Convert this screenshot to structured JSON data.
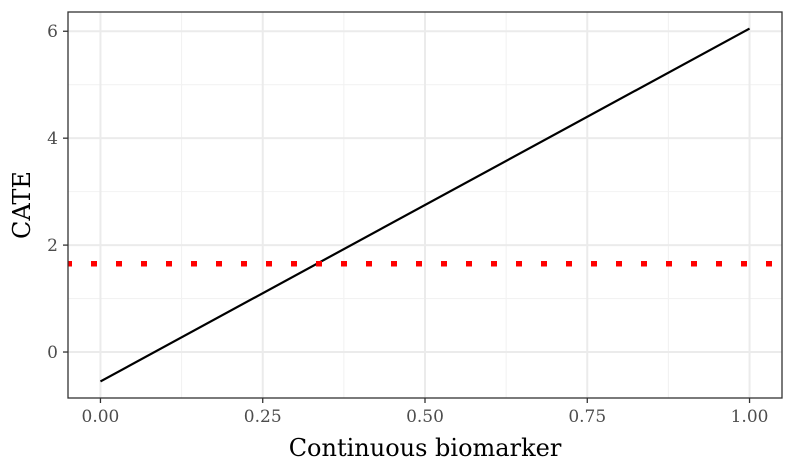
{
  "chart_data": {
    "type": "line",
    "xlabel": "Continuous biomarker",
    "ylabel": "CATE",
    "xlim": [
      -0.05,
      1.05
    ],
    "ylim": [
      -0.86,
      6.36
    ],
    "x_ticks": [
      0.0,
      0.25,
      0.5,
      0.75,
      1.0
    ],
    "x_tick_labels": [
      "0.00",
      "0.25",
      "0.50",
      "0.75",
      "1.00"
    ],
    "y_ticks": [
      0,
      2,
      4,
      6
    ],
    "y_tick_labels": [
      "0",
      "2",
      "4",
      "6"
    ],
    "grid": true,
    "series": [
      {
        "x": [
          0.0,
          1.0
        ],
        "y": [
          -0.55,
          6.05
        ],
        "color": "#000000",
        "style": "solid"
      }
    ],
    "reference_lines": [
      {
        "orientation": "horizontal",
        "y": 1.65,
        "color": "#ff0000",
        "style": "dotted"
      }
    ]
  }
}
